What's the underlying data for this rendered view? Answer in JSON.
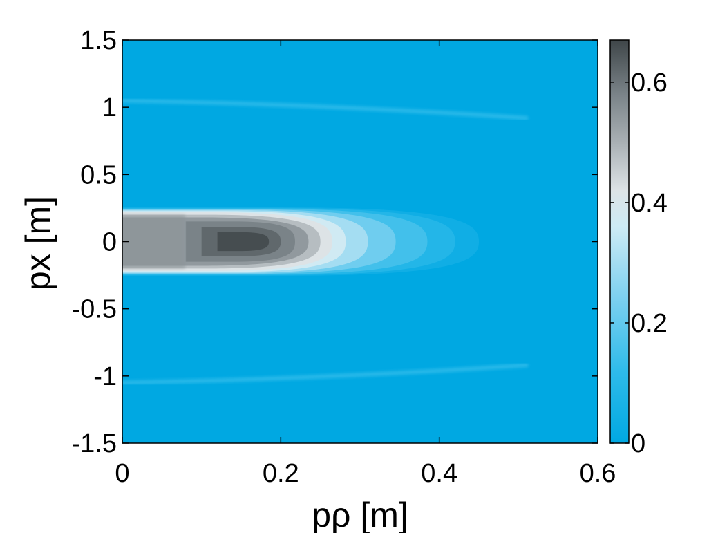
{
  "chart_data": {
    "type": "heatmap",
    "title": "",
    "xlabel": "pρ [m]",
    "ylabel": "px [m]",
    "xlim": [
      0,
      0.6
    ],
    "ylim": [
      -1.5,
      1.5
    ],
    "x_ticks": [
      {
        "value": 0,
        "label": "0"
      },
      {
        "value": 0.2,
        "label": "0.2"
      },
      {
        "value": 0.4,
        "label": "0.4"
      },
      {
        "value": 0.6,
        "label": "0.6"
      }
    ],
    "y_ticks": [
      {
        "value": 1.5,
        "label": "1.5"
      },
      {
        "value": 1,
        "label": "1"
      },
      {
        "value": 0.5,
        "label": "0.5"
      },
      {
        "value": 0,
        "label": "0"
      },
      {
        "value": -0.5,
        "label": "-0.5"
      },
      {
        "value": -1,
        "label": "-1"
      },
      {
        "value": -1.5,
        "label": "-1.5"
      }
    ],
    "colorbar": {
      "range": [
        0,
        0.67
      ],
      "ticks": [
        {
          "value": 0,
          "label": "0"
        },
        {
          "value": 0.2,
          "label": "0.2"
        },
        {
          "value": 0.4,
          "label": "0.4"
        },
        {
          "value": 0.6,
          "label": "0.6"
        }
      ],
      "colormap": [
        {
          "value": 0.0,
          "color": "#00a8e2"
        },
        {
          "value": 0.12,
          "color": "#2fbbea"
        },
        {
          "value": 0.25,
          "color": "#82d2f0"
        },
        {
          "value": 0.36,
          "color": "#cdebf5"
        },
        {
          "value": 0.42,
          "color": "#dde3e6"
        },
        {
          "value": 0.5,
          "color": "#a9b0b4"
        },
        {
          "value": 0.58,
          "color": "#7a8388"
        },
        {
          "value": 0.67,
          "color": "#3f4649"
        }
      ]
    },
    "features": [
      {
        "name": "central lobe",
        "x_range": [
          0,
          0.45
        ],
        "y_center": 0,
        "peak_value": 0.67,
        "peak_x": 0.15
      },
      {
        "name": "upper side band",
        "x_range": [
          0,
          0.51
        ],
        "y_center": 1.05,
        "value": 0.12
      },
      {
        "name": "lower side band",
        "x_range": [
          0,
          0.51
        ],
        "y_center": -1.05,
        "value": 0.12
      }
    ],
    "grid": false
  }
}
